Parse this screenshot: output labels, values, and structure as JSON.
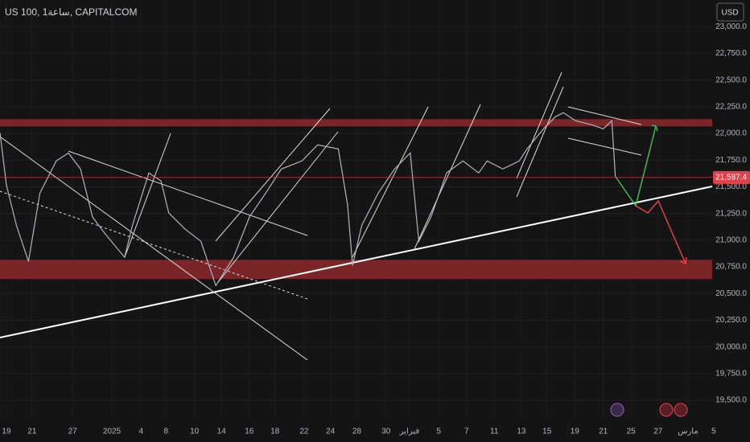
{
  "chart_data": {
    "type": "line",
    "title": "US 100, 1ساعة, CAPITALCOM",
    "currency_button": "USD",
    "color": "#b2b5be",
    "x": [
      0,
      0.9,
      2.3,
      4.0,
      5.6,
      7.9,
      9.6,
      11.3,
      13.0,
      14.7,
      17.5,
      18.6,
      20.9,
      22.6,
      23.7,
      26.0,
      28.2,
      30.3,
      32.8,
      35.0,
      37.3,
      39.5,
      42.4,
      44.6,
      47.5,
      48.8,
      49.5,
      50.8,
      53.1,
      55.4,
      57.6,
      58.8,
      60.5,
      62.7,
      65.0,
      67.2,
      68.4,
      70.6,
      72.9,
      74.0,
      76.3,
      78.0,
      79.1,
      80.8,
      83.1,
      84.7,
      85.9,
      86.4
    ],
    "values": [
      22006,
      21516,
      21140,
      20801,
      21441,
      21742,
      21817,
      21667,
      21215,
      21065,
      20839,
      21140,
      21630,
      21555,
      21254,
      21103,
      20990,
      20575,
      20839,
      21215,
      21441,
      21667,
      21742,
      21893,
      21855,
      21329,
      20764,
      21140,
      21441,
      21667,
      21817,
      20990,
      21215,
      21630,
      21742,
      21630,
      21742,
      21667,
      21742,
      21855,
      22043,
      22157,
      22194,
      22119,
      22081,
      22043,
      22119,
      21592
    ],
    "last_price": {
      "value": 21587.4,
      "label": "21,587.4"
    },
    "zones": [
      {
        "ylim": [
          22066,
          22134
        ],
        "color": "#7a2528"
      },
      {
        "ylim": [
          20636,
          20816
        ],
        "color": "#7a2528"
      }
    ],
    "xlim": [
      0,
      105.3
    ],
    "ylim": [
      19335,
      23250
    ],
    "xticks": [
      {
        "value": 0.9,
        "label": "19"
      },
      {
        "value": 4.5,
        "label": "21"
      },
      {
        "value": 10.2,
        "label": "27"
      },
      {
        "value": 15.7,
        "label": "2025"
      },
      {
        "value": 19.8,
        "label": "4"
      },
      {
        "value": 23.3,
        "label": "8"
      },
      {
        "value": 27.3,
        "label": "10"
      },
      {
        "value": 31.1,
        "label": "14"
      },
      {
        "value": 35.0,
        "label": "16"
      },
      {
        "value": 38.6,
        "label": "18"
      },
      {
        "value": 42.7,
        "label": "22"
      },
      {
        "value": 46.4,
        "label": "24"
      },
      {
        "value": 50.1,
        "label": "28"
      },
      {
        "value": 54.2,
        "label": "30"
      },
      {
        "value": 57.5,
        "label": "فبراير"
      },
      {
        "value": 61.6,
        "label": "5"
      },
      {
        "value": 65.5,
        "label": "7"
      },
      {
        "value": 69.4,
        "label": "11"
      },
      {
        "value": 73.2,
        "label": "13"
      },
      {
        "value": 76.8,
        "label": "15"
      },
      {
        "value": 80.7,
        "label": "19"
      },
      {
        "value": 84.7,
        "label": "21"
      },
      {
        "value": 88.6,
        "label": "25"
      },
      {
        "value": 92.4,
        "label": "27"
      },
      {
        "value": 96.6,
        "label": "مارس"
      },
      {
        "value": 100.2,
        "label": "5"
      }
    ],
    "yticks": [
      {
        "value": 19500,
        "label": "19,500.0"
      },
      {
        "value": 19750,
        "label": "19,750.0"
      },
      {
        "value": 20000,
        "label": "20,000.0"
      },
      {
        "value": 20250,
        "label": "20,250.0"
      },
      {
        "value": 20500,
        "label": "20,500.0"
      },
      {
        "value": 20750,
        "label": "20,750.0"
      },
      {
        "value": 21000,
        "label": "21,000.0"
      },
      {
        "value": 21250,
        "label": "21,250.0"
      },
      {
        "value": 21500,
        "label": "21,500.0"
      },
      {
        "value": 21750,
        "label": "21,750.0"
      },
      {
        "value": 22000,
        "label": "22,000.0"
      },
      {
        "value": 22250,
        "label": "22,250.0"
      },
      {
        "value": 22500,
        "label": "22,500.0"
      },
      {
        "value": 22750,
        "label": "22,750.0"
      },
      {
        "value": 23000,
        "label": "23,000.0"
      }
    ],
    "grid": true
  }
}
